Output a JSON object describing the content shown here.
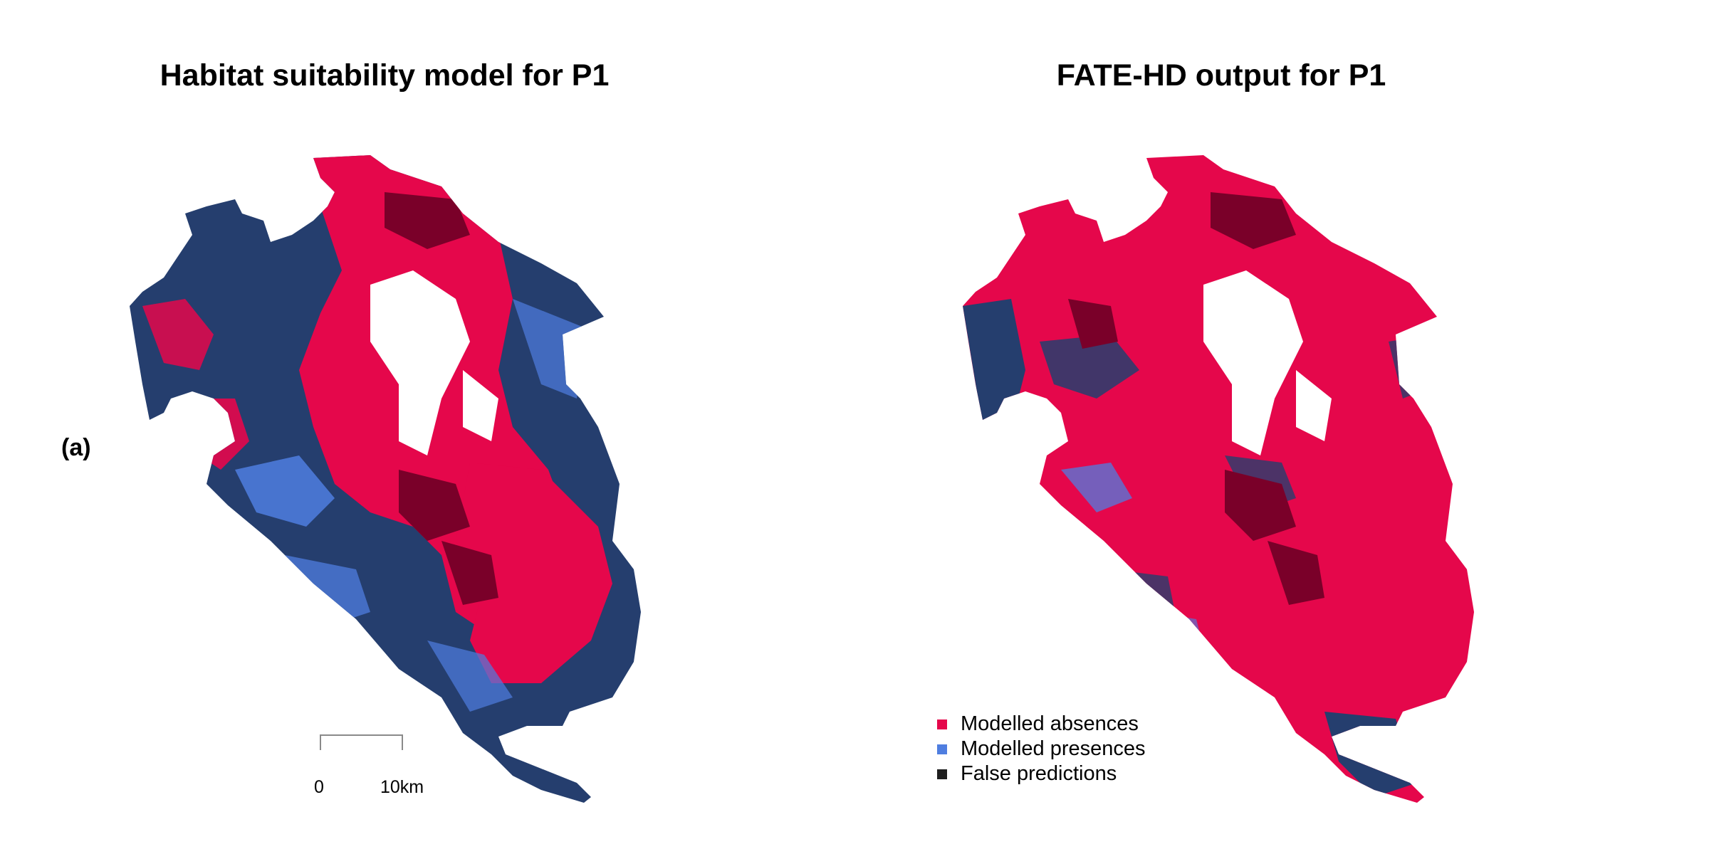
{
  "panels": {
    "left_title": "Habitat suitability model for P1",
    "right_title": "FATE-HD output for P1",
    "panel_label": "(a)"
  },
  "scale_bar": {
    "start_label": "0",
    "end_label": "10km"
  },
  "legend": {
    "items": [
      {
        "label": "Modelled absences",
        "color": "#e5074b"
      },
      {
        "label": "Modelled presences",
        "color": "#4f7ee0"
      },
      {
        "label": "False predictions",
        "color": "#1f1f1f"
      }
    ]
  },
  "map_colors": {
    "absence": "#e5074b",
    "presence_light": "#4f7ee0",
    "presence_dark": "#253e6e",
    "false_dark": "#7a0029",
    "glacier": "#ffffff"
  }
}
